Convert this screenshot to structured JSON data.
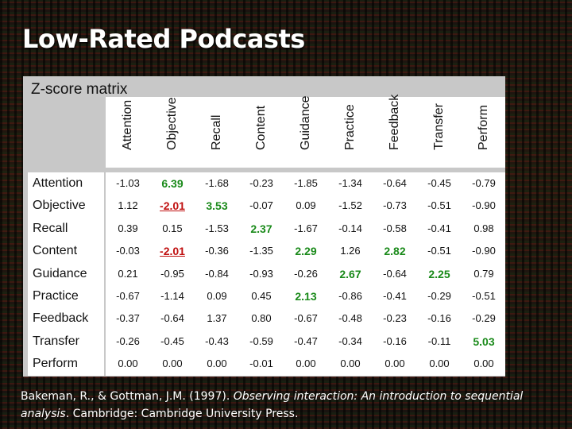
{
  "slide": {
    "title": "Low-Rated Podcasts"
  },
  "matrix": {
    "title": "Z-score matrix",
    "columns": [
      "Attention",
      "Objective",
      "Recall",
      "Content",
      "Guidance",
      "Practice",
      "Feedback",
      "Transfer",
      "Perform"
    ],
    "rows": [
      {
        "label": "Attention",
        "values": [
          "-1.03",
          "6.39",
          "-1.68",
          "-0.23",
          "-1.85",
          "-1.34",
          "-0.64",
          "-0.45",
          "-0.79"
        ]
      },
      {
        "label": "Objective",
        "values": [
          "1.12",
          "-2.01",
          "3.53",
          "-0.07",
          "0.09",
          "-1.52",
          "-0.73",
          "-0.51",
          "-0.90"
        ]
      },
      {
        "label": "Recall",
        "values": [
          "0.39",
          "0.15",
          "-1.53",
          "2.37",
          "-1.67",
          "-0.14",
          "-0.58",
          "-0.41",
          "0.98"
        ]
      },
      {
        "label": "Content",
        "values": [
          "-0.03",
          "-2.01",
          "-0.36",
          "-1.35",
          "2.29",
          "1.26",
          "2.82",
          "-0.51",
          "-0.90"
        ]
      },
      {
        "label": "Guidance",
        "values": [
          "0.21",
          "-0.95",
          "-0.84",
          "-0.93",
          "-0.26",
          "2.67",
          "-0.64",
          "2.25",
          "0.79"
        ]
      },
      {
        "label": "Practice",
        "values": [
          "-0.67",
          "-1.14",
          "0.09",
          "0.45",
          "2.13",
          "-0.86",
          "-0.41",
          "-0.29",
          "-0.51"
        ]
      },
      {
        "label": "Feedback",
        "values": [
          "-0.37",
          "-0.64",
          "1.37",
          "0.80",
          "-0.67",
          "-0.48",
          "-0.23",
          "-0.16",
          "-0.29"
        ]
      },
      {
        "label": "Transfer",
        "values": [
          "-0.26",
          "-0.45",
          "-0.43",
          "-0.59",
          "-0.47",
          "-0.34",
          "-0.16",
          "-0.11",
          "5.03"
        ]
      },
      {
        "label": "Perform",
        "values": [
          "0.00",
          "0.00",
          "0.00",
          "-0.01",
          "0.00",
          "0.00",
          "0.00",
          "0.00",
          "0.00"
        ]
      }
    ],
    "highlight_positive_color": "#1a8a1a",
    "highlight_negative_color": "#c01010",
    "positive_cells": [
      [
        0,
        1
      ],
      [
        1,
        2
      ],
      [
        2,
        3
      ],
      [
        3,
        4
      ],
      [
        3,
        6
      ],
      [
        4,
        5
      ],
      [
        4,
        7
      ],
      [
        5,
        4
      ],
      [
        7,
        8
      ]
    ],
    "negative_cells": [
      [
        1,
        1
      ],
      [
        3,
        1
      ]
    ]
  },
  "citation": {
    "authors": "Bakeman, R., & Gottman, J.M. (1997). ",
    "title": "Observing interaction: An introduction to sequential analysis",
    "publisher": ". Cambridge: Cambridge University Press."
  }
}
